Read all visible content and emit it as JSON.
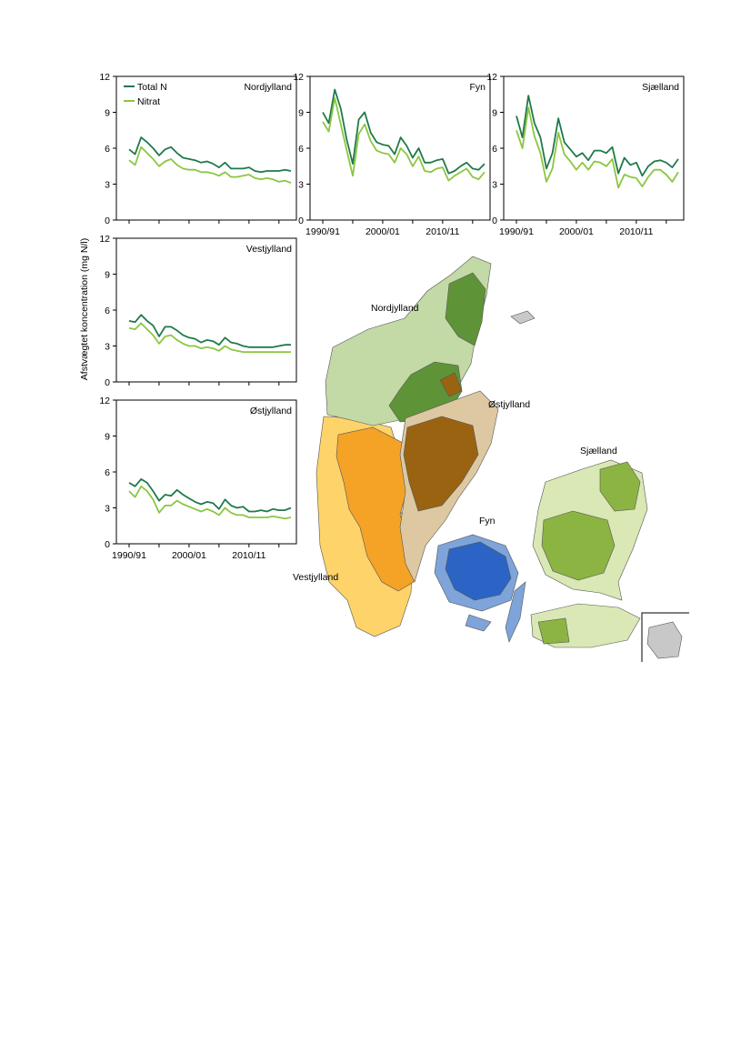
{
  "chart_data": {
    "type": "line",
    "ylabel": "Afstvægtet koncentration (mg N/l)",
    "ylim": [
      0,
      12
    ],
    "yticks": [
      0,
      3,
      6,
      9,
      12
    ],
    "x": [
      "1990/91",
      "1991/92",
      "1992/93",
      "1993/94",
      "1994/95",
      "1995/96",
      "1996/97",
      "1997/98",
      "1998/99",
      "1999/00",
      "2000/01",
      "2001/02",
      "2002/03",
      "2003/04",
      "2004/05",
      "2005/06",
      "2006/07",
      "2007/08",
      "2008/09",
      "2009/10",
      "2010/11",
      "2011/12",
      "2012/13",
      "2013/14",
      "2014/15",
      "2015/16",
      "2016/17",
      "2017/18"
    ],
    "xtick_labels": [
      "1990/91",
      "2000/01",
      "2010/11"
    ],
    "legend": {
      "position": "top-left",
      "entries": [
        "Total N",
        "Nitrat"
      ]
    },
    "panels": [
      {
        "title": "Nordjylland",
        "series": [
          {
            "name": "Total N",
            "color": "#1f7a4a",
            "values": [
              5.9,
              5.5,
              6.9,
              6.5,
              6.0,
              5.4,
              5.9,
              6.1,
              5.6,
              5.2,
              5.1,
              5.0,
              4.8,
              4.9,
              4.7,
              4.4,
              4.8,
              4.3,
              4.3,
              4.3,
              4.4,
              4.1,
              4.0,
              4.1,
              4.1,
              4.1,
              4.2,
              4.1
            ]
          },
          {
            "name": "Nitrat",
            "color": "#8cc63f",
            "values": [
              5.0,
              4.6,
              6.1,
              5.6,
              5.1,
              4.5,
              4.9,
              5.1,
              4.6,
              4.3,
              4.2,
              4.2,
              4.0,
              4.0,
              3.9,
              3.7,
              4.0,
              3.6,
              3.6,
              3.7,
              3.8,
              3.5,
              3.4,
              3.5,
              3.4,
              3.2,
              3.3,
              3.1
            ]
          }
        ]
      },
      {
        "title": "Fyn",
        "series": [
          {
            "name": "Total N",
            "color": "#1f7a4a",
            "values": [
              9.0,
              8.1,
              10.9,
              9.3,
              6.7,
              4.7,
              8.4,
              9.0,
              7.3,
              6.5,
              6.3,
              6.2,
              5.5,
              6.9,
              6.2,
              5.2,
              6.0,
              4.8,
              4.8,
              5.0,
              5.1,
              3.9,
              4.1,
              4.5,
              4.8,
              4.3,
              4.2,
              4.7
            ]
          },
          {
            "name": "Nitrat",
            "color": "#8cc63f",
            "values": [
              8.2,
              7.4,
              10.2,
              8.0,
              5.8,
              3.7,
              7.2,
              8.0,
              6.6,
              5.8,
              5.6,
              5.5,
              4.8,
              6.0,
              5.5,
              4.5,
              5.3,
              4.1,
              4.0,
              4.3,
              4.4,
              3.3,
              3.7,
              4.0,
              4.3,
              3.6,
              3.4,
              4.0
            ]
          }
        ]
      },
      {
        "title": "Sjælland",
        "series": [
          {
            "name": "Total N",
            "color": "#1f7a4a",
            "values": [
              8.7,
              6.9,
              10.4,
              8.1,
              6.9,
              4.3,
              5.6,
              8.5,
              6.5,
              5.9,
              5.3,
              5.6,
              5.0,
              5.8,
              5.8,
              5.6,
              6.1,
              3.9,
              5.2,
              4.6,
              4.8,
              3.7,
              4.5,
              4.9,
              5.0,
              4.8,
              4.4,
              5.1
            ]
          },
          {
            "name": "Nitrat",
            "color": "#8cc63f",
            "values": [
              7.5,
              6.0,
              9.4,
              7.0,
              5.6,
              3.2,
              4.3,
              7.3,
              5.5,
              4.9,
              4.2,
              4.8,
              4.2,
              4.9,
              4.8,
              4.5,
              5.1,
              2.7,
              3.8,
              3.6,
              3.5,
              2.8,
              3.6,
              4.2,
              4.2,
              3.8,
              3.2,
              4.0
            ]
          }
        ]
      },
      {
        "title": "Vestjylland",
        "series": [
          {
            "name": "Total N",
            "color": "#1f7a4a",
            "values": [
              5.1,
              5.0,
              5.6,
              5.1,
              4.7,
              3.8,
              4.6,
              4.6,
              4.3,
              3.9,
              3.7,
              3.6,
              3.3,
              3.5,
              3.4,
              3.1,
              3.7,
              3.3,
              3.2,
              3.0,
              2.9,
              2.9,
              2.9,
              2.9,
              2.9,
              3.0,
              3.1,
              3.1
            ]
          },
          {
            "name": "Nitrat",
            "color": "#8cc63f",
            "values": [
              4.5,
              4.4,
              4.9,
              4.4,
              3.9,
              3.2,
              3.8,
              3.9,
              3.5,
              3.2,
              3.0,
              3.0,
              2.8,
              2.9,
              2.8,
              2.6,
              3.0,
              2.7,
              2.6,
              2.5,
              2.5,
              2.5,
              2.5,
              2.5,
              2.5,
              2.5,
              2.5,
              2.5
            ]
          }
        ]
      },
      {
        "title": "Østjylland",
        "series": [
          {
            "name": "Total N",
            "color": "#1f7a4a",
            "values": [
              5.1,
              4.8,
              5.4,
              5.1,
              4.4,
              3.6,
              4.1,
              4.0,
              4.5,
              4.1,
              3.8,
              3.5,
              3.3,
              3.5,
              3.4,
              2.9,
              3.7,
              3.2,
              3.0,
              3.1,
              2.7,
              2.7,
              2.8,
              2.7,
              2.9,
              2.8,
              2.8,
              3.0
            ]
          },
          {
            "name": "Nitrat",
            "color": "#8cc63f",
            "values": [
              4.4,
              3.9,
              4.8,
              4.4,
              3.7,
              2.6,
              3.2,
              3.2,
              3.6,
              3.3,
              3.1,
              2.9,
              2.7,
              2.9,
              2.7,
              2.4,
              3.0,
              2.6,
              2.4,
              2.4,
              2.2,
              2.2,
              2.2,
              2.2,
              2.3,
              2.2,
              2.1,
              2.2
            ]
          }
        ]
      }
    ],
    "map": {
      "labels": [
        "Nordjylland",
        "Østjylland",
        "Sjælland",
        "Fyn",
        "Vestjylland"
      ],
      "colors": {
        "Nordjylland": "#c3d9a6",
        "Nordjylland_catchments": "#5e9437",
        "Østjylland": "#ddc8a2",
        "Østjylland_catchments": "#9a6312",
        "Vestjylland": "#fdd36a",
        "Vestjylland_catchments": "#f4a327",
        "Fyn": "#7ea4da",
        "Fyn_catchments": "#2b64c4",
        "Sjælland": "#d9e8b4",
        "Sjælland_catchments": "#8cb443",
        "other": "#c8c8c8"
      }
    }
  }
}
